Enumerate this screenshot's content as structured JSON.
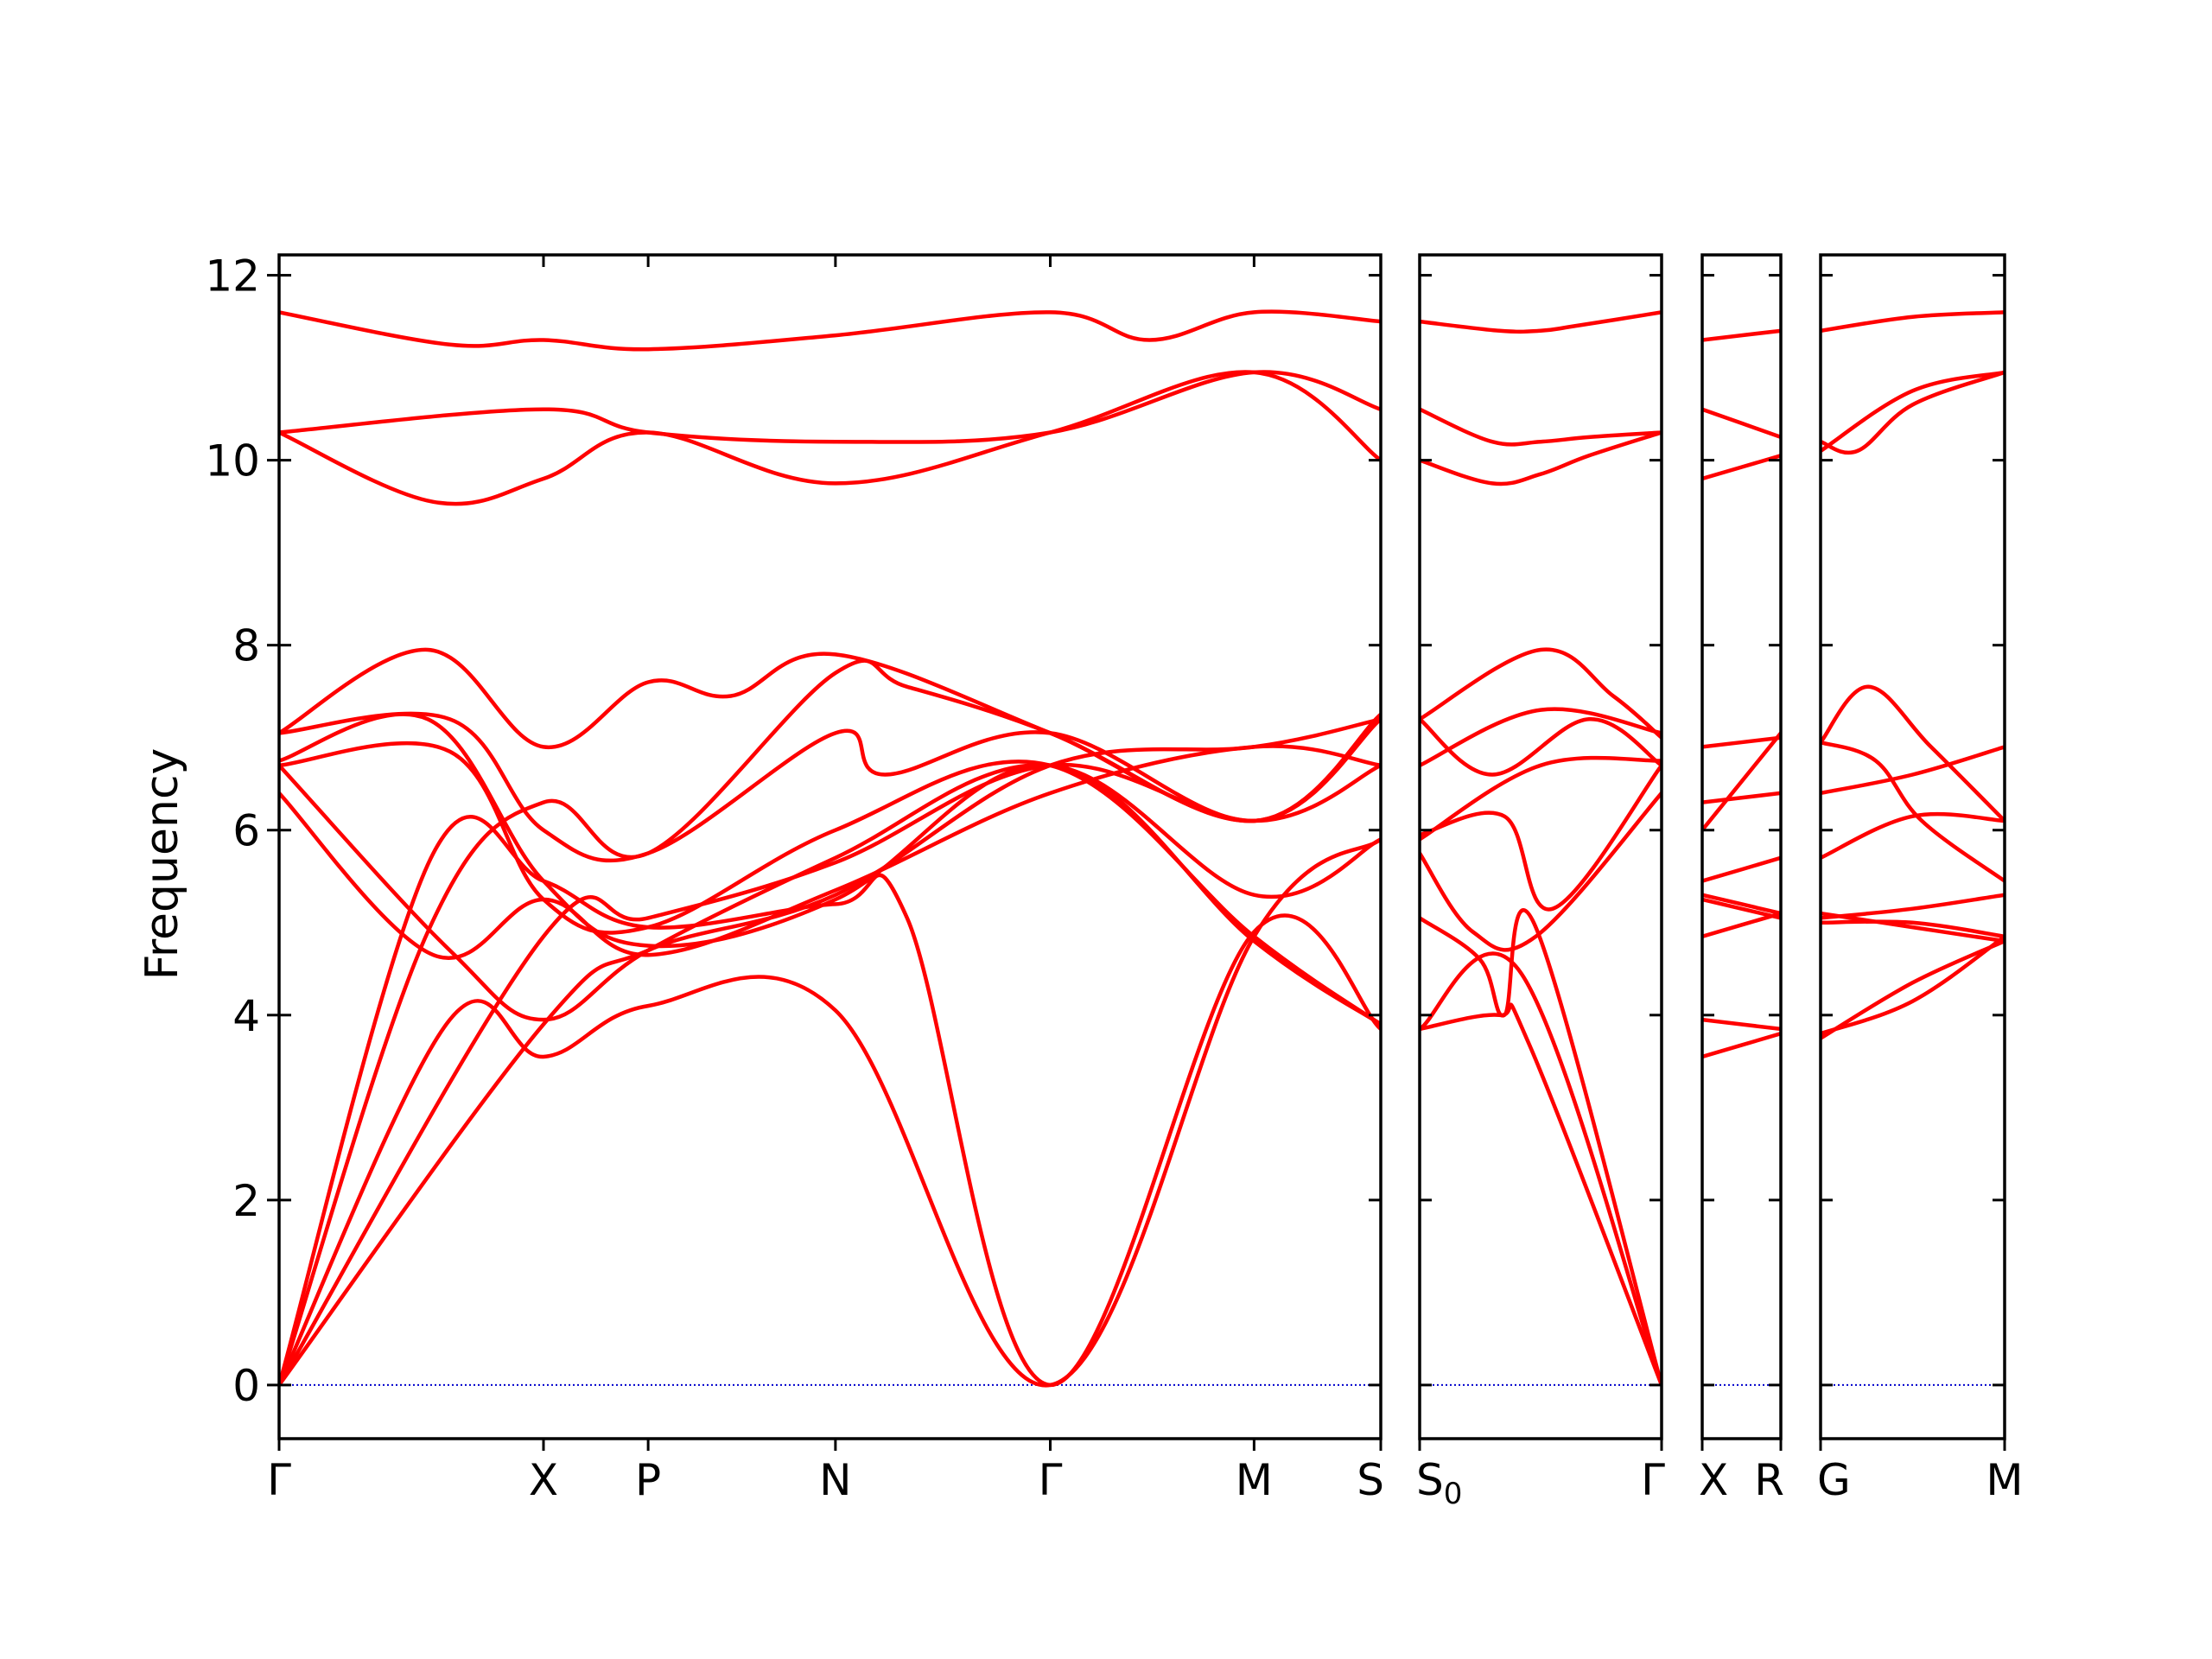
{
  "chart_data": {
    "type": "line",
    "ylabel": "Frequency",
    "xlabel": "",
    "ylim": [
      -0.58,
      12.22
    ],
    "yticks": [
      "0",
      "2",
      "4",
      "6",
      "8",
      "10",
      "12"
    ],
    "grid": false,
    "series_color": "#ff0000",
    "zero_line_color": "#0000cc",
    "panels": [
      {
        "labels": [
          "Γ",
          "X",
          "P",
          "N",
          "Γ",
          "M",
          "S"
        ],
        "positions": [
          0,
          0.24,
          0.335,
          0.505,
          0.7,
          0.885,
          1.0
        ],
        "bands": [
          {
            "x": [
              0,
              0.24,
              0.335,
              0.505,
              0.7,
              0.885,
              1.0
            ],
            "y": [
              0,
              3.9,
              4.7,
              5.3,
              6.7,
              6.9,
              7.2
            ]
          },
          {
            "x": [
              0,
              0.24,
              0.335,
              0.505,
              0.7,
              0.885,
              1.0
            ],
            "y": [
              0,
              4.85,
              5.05,
              5.65,
              6.7,
              6.1,
              6.7
            ]
          },
          {
            "x": [
              0,
              0.155,
              0.24,
              0.335,
              0.505,
              0.7,
              0.885,
              1.0
            ],
            "y": [
              0,
              3.95,
              3.55,
              4.1,
              4.05,
              0,
              4.85,
              5.9
            ]
          },
          {
            "x": [
              0,
              0.135,
              0.24,
              0.335,
              0.505,
              0.57,
              0.7,
              0.885,
              1.0
            ],
            "y": [
              0,
              4.9,
              6.3,
              5.75,
              7.7,
              7.55,
              7.05,
              6.1,
              7.25
            ]
          },
          {
            "x": [
              0,
              0.14,
              0.24,
              0.335,
              0.505,
              0.57,
              0.7,
              0.885,
              1.0
            ],
            "y": [
              0,
              5.75,
              5.45,
              4.95,
              5.2,
              5.05,
              0,
              4.9,
              3.85
            ]
          },
          {
            "x": [
              0,
              0.14,
              0.24,
              0.335,
              0.505,
              0.7,
              0.885,
              1.0
            ],
            "y": [
              6.4,
              4.65,
              5.25,
              4.65,
              5.35,
              6.4,
              6.9,
              6.7
            ]
          },
          {
            "x": [
              0,
              0.155,
              0.24,
              0.335,
              0.505,
              0.7,
              0.885,
              1.0
            ],
            "y": [
              6.7,
              4.7,
              3.95,
              4.7,
              5.7,
              6.7,
              5.3,
              5.9
            ]
          },
          {
            "x": [
              0,
              0.155,
              0.24,
              0.335,
              0.505,
              0.7,
              0.885,
              1.0
            ],
            "y": [
              6.7,
              6.85,
              5.25,
              4.95,
              6.0,
              6.7,
              4.85,
              3.9
            ]
          },
          {
            "x": [
              0,
              0.155,
              0.24,
              0.335,
              0.505,
              0.55,
              0.7,
              0.885,
              1.0
            ],
            "y": [
              7.05,
              7.2,
              6.0,
              5.75,
              7.05,
              6.6,
              7.05,
              6.1,
              7.2
            ]
          },
          {
            "x": [
              0,
              0.135,
              0.24,
              0.335,
              0.41,
              0.505,
              0.7,
              0.885,
              1.0
            ],
            "y": [
              7.05,
              7.95,
              6.9,
              7.6,
              7.45,
              7.9,
              7.05,
              6.1,
              7.25
            ]
          },
          {
            "x": [
              0,
              0.135,
              0.24,
              0.335,
              0.505,
              0.7,
              0.885,
              1.0
            ],
            "y": [
              6.75,
              7.2,
              5.45,
              4.75,
              5.25,
              6.7,
              4.8,
              3.9
            ]
          },
          {
            "x": [
              0,
              0.14,
              0.24,
              0.335,
              0.505,
              0.7,
              0.885,
              1.0
            ],
            "y": [
              10.3,
              9.55,
              9.8,
              10.3,
              9.75,
              10.3,
              10.95,
              10.0
            ]
          },
          {
            "x": [
              0,
              0.24,
              0.335,
              0.505,
              0.7,
              0.885,
              1.0
            ],
            "y": [
              10.3,
              10.55,
              10.3,
              10.2,
              10.3,
              10.95,
              10.55
            ]
          },
          {
            "x": [
              0,
              0.155,
              0.24,
              0.335,
              0.505,
              0.7,
              0.79,
              0.885,
              1.0
            ],
            "y": [
              11.6,
              11.25,
              11.3,
              11.2,
              11.35,
              11.6,
              11.3,
              11.6,
              11.5
            ]
          }
        ]
      },
      {
        "labels": [
          "S$_0$",
          "Γ"
        ],
        "positions": [
          0,
          1.0
        ],
        "bands": [
          {
            "x": [
              0,
              0.33,
              0.5,
              0.64,
              1.0
            ],
            "y": [
              11.5,
              11.4,
              11.4,
              11.45,
              11.6
            ]
          },
          {
            "x": [
              0,
              0.3,
              0.5,
              0.7,
              1.0
            ],
            "y": [
              10.55,
              10.2,
              10.2,
              10.25,
              10.3
            ]
          },
          {
            "x": [
              0,
              0.3,
              0.5,
              0.7,
              1.0
            ],
            "y": [
              10.0,
              9.75,
              9.85,
              10.05,
              10.3
            ]
          },
          {
            "x": [
              0,
              0.5,
              0.8,
              1.0
            ],
            "y": [
              7.2,
              7.95,
              7.45,
              7.0
            ]
          },
          {
            "x": [
              0,
              0.3,
              0.7,
              1.0
            ],
            "y": [
              7.2,
              6.6,
              7.2,
              6.7
            ]
          },
          {
            "x": [
              0,
              0.5,
              1.0
            ],
            "y": [
              6.7,
              7.3,
              7.05
            ]
          },
          {
            "x": [
              0,
              0.5,
              1.0
            ],
            "y": [
              5.9,
              6.7,
              6.75
            ]
          },
          {
            "x": [
              0,
              0.35,
              0.55,
              1.0
            ],
            "y": [
              5.95,
              6.15,
              5.15,
              6.7
            ]
          },
          {
            "x": [
              0,
              0.22,
              0.48,
              1.0
            ],
            "y": [
              5.75,
              4.9,
              4.85,
              6.4
            ]
          },
          {
            "x": [
              0,
              0.25,
              0.35,
              0.48,
              1.0
            ],
            "y": [
              5.05,
              4.6,
              4.0,
              4.95,
              0
            ]
          },
          {
            "x": [
              0,
              0.33,
              0.45,
              1.0
            ],
            "y": [
              3.85,
              4.0,
              3.7,
              0
            ]
          },
          {
            "x": [
              0,
              0.42,
              1.0
            ],
            "y": [
              3.85,
              4.45,
              0
            ]
          }
        ]
      },
      {
        "labels": [
          "X",
          "R"
        ],
        "positions": [
          0,
          1.0
        ],
        "bands": [
          {
            "x": [
              0,
              1.0
            ],
            "y": [
              11.3,
              11.4
            ]
          },
          {
            "x": [
              0,
              1.0
            ],
            "y": [
              10.55,
              10.25
            ]
          },
          {
            "x": [
              0,
              1.0
            ],
            "y": [
              9.8,
              10.05
            ]
          },
          {
            "x": [
              0,
              1.0
            ],
            "y": [
              6.9,
              7.0
            ]
          },
          {
            "x": [
              0,
              1.0
            ],
            "y": [
              6.0,
              7.05
            ]
          },
          {
            "x": [
              0,
              1.0
            ],
            "y": [
              6.3,
              6.4
            ]
          },
          {
            "x": [
              0,
              1.0
            ],
            "y": [
              5.45,
              5.7
            ]
          },
          {
            "x": [
              0,
              1.0
            ],
            "y": [
              5.3,
              5.1
            ]
          },
          {
            "x": [
              0,
              1.0
            ],
            "y": [
              5.25,
              5.05
            ]
          },
          {
            "x": [
              0,
              1.0
            ],
            "y": [
              4.85,
              5.1
            ]
          },
          {
            "x": [
              0,
              1.0
            ],
            "y": [
              3.95,
              3.85
            ]
          },
          {
            "x": [
              0,
              1.0
            ],
            "y": [
              3.55,
              3.8
            ]
          }
        ]
      },
      {
        "labels": [
          "G",
          "M"
        ],
        "positions": [
          0,
          1.0
        ],
        "bands": [
          {
            "x": [
              0,
              0.5,
              1.0
            ],
            "y": [
              11.4,
              11.55,
              11.6
            ]
          },
          {
            "x": [
              0,
              0.5,
              1.0
            ],
            "y": [
              10.1,
              10.75,
              10.95
            ]
          },
          {
            "x": [
              0,
              0.2,
              0.5,
              1.0
            ],
            "y": [
              10.2,
              10.1,
              10.6,
              10.95
            ]
          },
          {
            "x": [
              0,
              0.26,
              0.6,
              1.0
            ],
            "y": [
              6.95,
              7.55,
              6.9,
              6.1
            ]
          },
          {
            "x": [
              0,
              0.3,
              0.55,
              1.0
            ],
            "y": [
              6.95,
              6.75,
              6.1,
              5.45
            ]
          },
          {
            "x": [
              0,
              0.5,
              1.0
            ],
            "y": [
              6.4,
              6.6,
              6.9
            ]
          },
          {
            "x": [
              0,
              0.5,
              1.0
            ],
            "y": [
              5.7,
              6.15,
              6.1
            ]
          },
          {
            "x": [
              0,
              0.5,
              1.0
            ],
            "y": [
              5.05,
              5.15,
              5.3
            ]
          },
          {
            "x": [
              0,
              0.5,
              1.0
            ],
            "y": [
              5.1,
              4.95,
              4.8
            ]
          },
          {
            "x": [
              0,
              0.5,
              1.0
            ],
            "y": [
              5.0,
              5.0,
              4.85
            ]
          },
          {
            "x": [
              0,
              0.5,
              1.0
            ],
            "y": [
              3.8,
              4.15,
              4.85
            ]
          },
          {
            "x": [
              0,
              0.5,
              1.0
            ],
            "y": [
              3.75,
              4.35,
              4.8
            ]
          }
        ]
      }
    ]
  }
}
